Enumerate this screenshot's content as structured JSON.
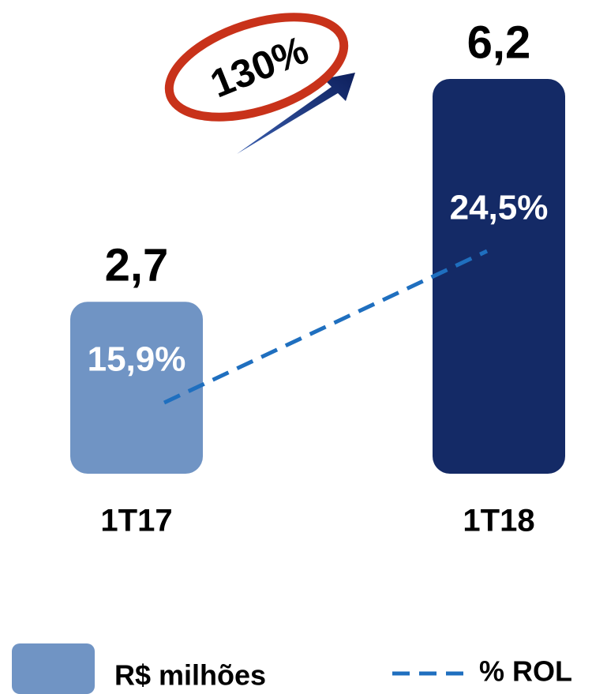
{
  "chart_data": {
    "type": "bar",
    "categories": [
      "1T17",
      "1T18"
    ],
    "series": [
      {
        "name": "R$ milhões",
        "colors": [
          "#7094c4",
          "#142a66"
        ],
        "values": [
          2.7,
          6.2
        ],
        "value_labels": [
          "2,7",
          "6,2"
        ]
      },
      {
        "name": "% ROL",
        "type": "line",
        "axis": "y2",
        "color": "#1f6fbf",
        "values": [
          15.9,
          24.5
        ],
        "value_labels": [
          "15,9%",
          "24,5%"
        ]
      }
    ],
    "annotation": "130%"
  }
}
